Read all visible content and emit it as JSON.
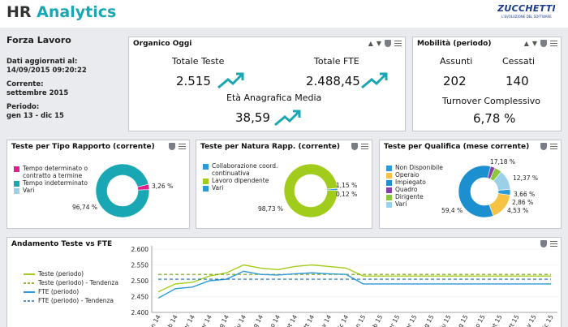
{
  "header": {
    "title_main": "HR ",
    "title_accent": "Analytics",
    "logo_text": "ZUCCHETTI",
    "logo_sub": "L'EVOLUZIONE DEL SOFTWARE"
  },
  "sidebar": {
    "title": "Forza Lavoro",
    "updated_label": "Dati aggiornati al:",
    "updated_value": "14/09/2015 09:20:22",
    "current_label": "Corrente:",
    "current_value": "settembre 2015",
    "period_label": "Periodo:",
    "period_value": "gen 13 - dic 15"
  },
  "organico": {
    "title": "Organico  Oggi",
    "totale_teste_label": "Totale Teste",
    "totale_teste_value": "2.515",
    "totale_fte_label": "Totale FTE",
    "totale_fte_value": "2.488,45",
    "eta_label": "Età Anagrafica Media",
    "eta_value": "38,59"
  },
  "mobilita": {
    "title": "Mobilità  (periodo)",
    "assunti_label": "Assunti",
    "assunti_value": "202",
    "cessati_label": "Cessati",
    "cessati_value": "140",
    "turnover_label": "Turnover Complessivo",
    "turnover_value": "6,78 %"
  },
  "colors": {
    "teal": "#19a8b3",
    "lime": "#a2cc1b",
    "blue": "#2b9ad8",
    "magenta": "#e0208a"
  },
  "tipo_rapporto": {
    "title": "Teste  per Tipo Rapporto  (corrente)",
    "legend": [
      {
        "label": "Tempo determinato o contratto a termine",
        "color": "#e0208a"
      },
      {
        "label": "Tempo indeterminato",
        "color": "#19a8b3"
      },
      {
        "label": "Vari",
        "color": "#9bd1e8"
      }
    ],
    "labels": [
      "3,26 %",
      "96,74 %"
    ]
  },
  "natura_rapp": {
    "title": "Teste  per  Natura  Rapp.  (corrente)",
    "legend": [
      {
        "label": "Collaborazione coord. continuativa",
        "color": "#2b9ad8"
      },
      {
        "label": "Lavoro dipendente",
        "color": "#a2cc1b"
      },
      {
        "label": "Vari",
        "color": "#2b9ad8"
      }
    ],
    "labels": [
      "1,15 %",
      "0,12 %",
      "98,73 %"
    ]
  },
  "qualifica": {
    "title": "Teste  per Qualifica  (mese corrente)",
    "legend": [
      {
        "label": "Non Disponibile",
        "color": "#2b9ad8"
      },
      {
        "label": "Operaio",
        "color": "#f5c243"
      },
      {
        "label": "Impiegato",
        "color": "#1c8fd1"
      },
      {
        "label": "Quadro",
        "color": "#8a3fa8"
      },
      {
        "label": "Dirigente",
        "color": "#8cc63f"
      },
      {
        "label": "Vari",
        "color": "#9bd1e8"
      }
    ],
    "labels": [
      "17,18 %",
      "12,37 %",
      "3,66 %",
      "2,86 %",
      "4,53 %",
      "59,4 %"
    ]
  },
  "andamento": {
    "title": "Andamento   Teste  vs FTE",
    "legend": [
      {
        "label": "Teste (periodo)",
        "color": "#a2cc1b",
        "style": "solid"
      },
      {
        "label": "Teste (periodo) - Tendenza",
        "color": "#7a9a10",
        "style": "dashed"
      },
      {
        "label": "FTE (periodo)",
        "color": "#2b9ad8",
        "style": "solid"
      },
      {
        "label": "FTE (periodo) - Tendenza",
        "color": "#1c6fb0",
        "style": "dashed"
      }
    ]
  },
  "chart_data": [
    {
      "type": "pie",
      "categories": [
        "Tempo determinato o contratto a termine",
        "Tempo indeterminato",
        "Vari"
      ],
      "values": [
        3.26,
        96.74,
        0
      ]
    },
    {
      "type": "pie",
      "categories": [
        "Collaborazione coord. continuativa",
        "Lavoro dipendente",
        "Vari"
      ],
      "values": [
        1.15,
        98.73,
        0.12
      ]
    },
    {
      "type": "pie",
      "categories": [
        "Non Disponibile",
        "Operaio",
        "Impiegato",
        "Quadro",
        "Dirigente",
        "Vari"
      ],
      "values": [
        3.66,
        17.18,
        59.4,
        2.86,
        4.53,
        12.37
      ]
    },
    {
      "type": "line",
      "x": [
        "gen 14",
        "feb 14",
        "mar 14",
        "apr 14",
        "mag 14",
        "giu 14",
        "lug 14",
        "ago 14",
        "set 14",
        "ott 14",
        "nov 14",
        "dic 14",
        "gen 15",
        "feb 15",
        "mar 15",
        "apr 15",
        "mag 15",
        "giu 15",
        "lug 15",
        "ago 15",
        "set 15",
        "ott 15",
        "nov 15",
        "dic 15"
      ],
      "ylim": [
        2400,
        2600
      ],
      "yticks": [
        "2.400",
        "2.450",
        "2.500",
        "2.550",
        "2.600"
      ],
      "series": [
        {
          "name": "Teste (periodo)",
          "values": [
            2465,
            2490,
            2495,
            2515,
            2525,
            2550,
            2540,
            2535,
            2545,
            2550,
            2545,
            2540,
            2515,
            2515,
            2515,
            2515,
            2515,
            2515,
            2515,
            2515,
            2515,
            2515,
            2515,
            2515
          ]
        },
        {
          "name": "Teste (periodo) - Tendenza",
          "values": [
            2520,
            2520,
            2520,
            2520,
            2520,
            2520,
            2520,
            2520,
            2520,
            2520,
            2520,
            2520,
            2520,
            2520,
            2520,
            2520,
            2520,
            2520,
            2520,
            2520,
            2520,
            2520,
            2520,
            2520
          ]
        },
        {
          "name": "FTE (periodo)",
          "values": [
            2445,
            2475,
            2480,
            2500,
            2505,
            2530,
            2520,
            2518,
            2522,
            2525,
            2522,
            2520,
            2490,
            2490,
            2490,
            2490,
            2490,
            2490,
            2490,
            2490,
            2490,
            2490,
            2490,
            2490
          ]
        },
        {
          "name": "FTE (periodo) - Tendenza",
          "values": [
            2505,
            2505,
            2505,
            2505,
            2505,
            2505,
            2505,
            2505,
            2505,
            2505,
            2505,
            2505,
            2505,
            2505,
            2505,
            2505,
            2505,
            2505,
            2505,
            2505,
            2505,
            2505,
            2505,
            2505
          ]
        }
      ]
    }
  ]
}
